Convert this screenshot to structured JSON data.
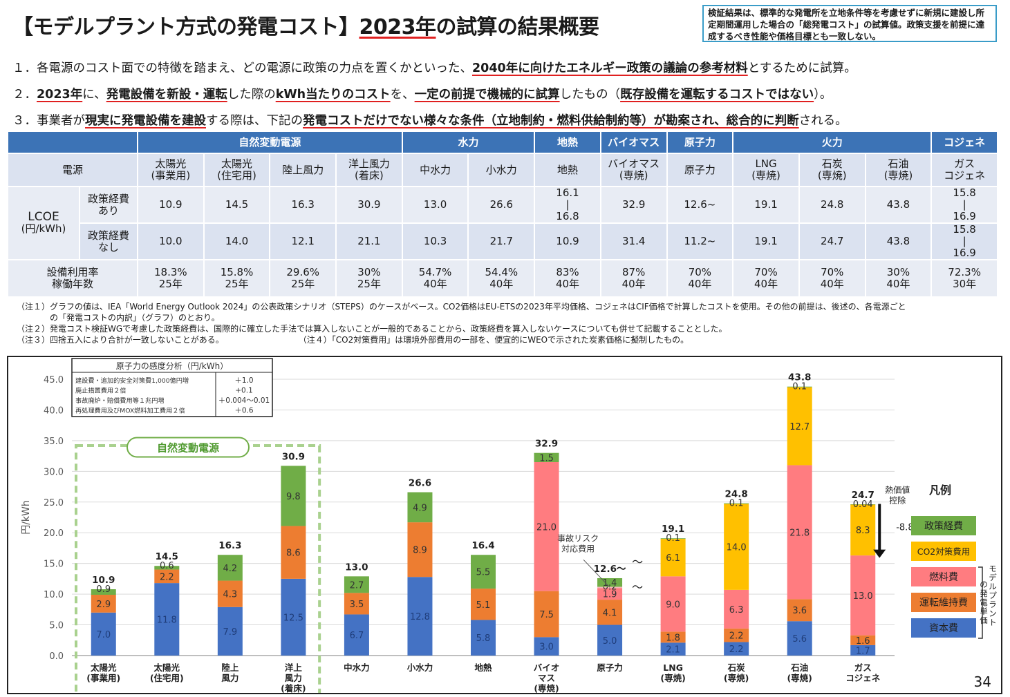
{
  "header": {
    "title_prefix": "【モデルプラント方式の発電コスト】",
    "title_year": "2023年",
    "title_suffix": "の試算の結果概要",
    "note": "検証結果は、標準的な発電所を立地条件等を考慮せずに新規に建設し所定期間運用した場合の「総発電コスト」の試算値。政策支援を前提に達成するべき性能や価格目標とも一致しない。"
  },
  "bullets": [
    {
      "a": "１．各電源のコスト面での特徴を踏まえ、どの電源に政策の力点を置くかといった、",
      "b": "2040年に向けたエネルギー政策の議論の参考材料",
      "c": "とするために試算。",
      "d": "",
      "e": "",
      "f": "",
      "g": "",
      "h": ""
    },
    {
      "a": "２．",
      "b": "2023年",
      "c": "に、",
      "d": "発電設備を新設・運転",
      "e": "した際の",
      "f": "kWh当たりのコスト",
      "g": "を、",
      "h": "一定の前提で機械的に試算",
      "i": "したもの（",
      "j": "既存設備を運転するコストではない",
      "k": "）。"
    },
    {
      "a": "３．事業者が",
      "b": "現実に発電設備を建設",
      "c": "する際は、下記の",
      "d": "発電コストだけでない様々な条件（立地制約・燃料供給制約等）が勘案され、総合的に判断",
      "e": "される。"
    }
  ],
  "table": {
    "categories": [
      {
        "label": "自然変動電源",
        "span": 4
      },
      {
        "label": "水力",
        "span": 2
      },
      {
        "label": "地熱",
        "span": 1
      },
      {
        "label": "バイオマス",
        "span": 1
      },
      {
        "label": "原子力",
        "span": 1
      },
      {
        "label": "火力",
        "span": 3
      },
      {
        "label": "コジェネ",
        "span": 1
      }
    ],
    "source_header": "電源",
    "sources": [
      "太陽光\n(事業用)",
      "太陽光\n(住宅用)",
      "陸上風力",
      "洋上風力\n(着床)",
      "中水力",
      "小水力",
      "地熱",
      "バイオマス\n(専焼)",
      "原子力",
      "LNG\n(専焼)",
      "石炭\n(専焼)",
      "石油\n(専焼)",
      "ガス\nコジェネ"
    ],
    "lcoe_label": "LCOE",
    "lcoe_unit": "(円/kWh)",
    "row_with_label": "政策経費\nあり",
    "row_without_label": "政策経費\nなし",
    "with_policy": [
      "10.9",
      "14.5",
      "16.3",
      "30.9",
      "13.0",
      "26.6",
      "16.1\n|\n16.8",
      "32.9",
      "12.6~",
      "19.1",
      "24.8",
      "43.8",
      "15.8\n|\n16.9"
    ],
    "without_policy": [
      "10.0",
      "14.0",
      "12.1",
      "21.1",
      "10.3",
      "21.7",
      "10.9",
      "31.4",
      "11.2~",
      "19.1",
      "24.7",
      "43.8",
      "15.8\n|\n16.9"
    ],
    "util_label": "設備利用率\n稼働年数",
    "util": [
      "18.3%\n25年",
      "15.8%\n25年",
      "29.6%\n25年",
      "30%\n25年",
      "54.7%\n40年",
      "54.4%\n40年",
      "83%\n40年",
      "87%\n40年",
      "70%\n40年",
      "70%\n40年",
      "70%\n40年",
      "30%\n40年",
      "72.3%\n30年"
    ]
  },
  "footnotes": [
    "（注１）グラフの値は、IEA「World Energy Outlook 2024」の公表政策シナリオ（STEPS）のケースがベース。CO2価格はEU-ETSの2023年平均価格、コジェネはCIF価格で計算したコストを使用。その他の前提は、後述の、各電源ごと",
    "　　　　の「発電コストの内訳」（グラフ）のとおり。",
    "（注２）発電コスト検証WGで考慮した政策経費は、国際的に確立した手法では算入しないことが一般的であることから、政策経費を算入しないケースについても併せて記載することとした。",
    "（注３）四捨五入により合計が一致しないことがある。　　　　　　　　　　（注４）「CO2対策費用」は環境外部費用の一部を、便宜的にWEOで示された炭素価格に擬制したもの。"
  ],
  "chart_data": {
    "type": "bar",
    "stacked": true,
    "ylabel": "円/kWh",
    "ylim": [
      0,
      45
    ],
    "yticks": [
      "0.0",
      "5.0",
      "10.0",
      "15.0",
      "20.0",
      "25.0",
      "30.0",
      "35.0",
      "40.0",
      "45.0"
    ],
    "categories": [
      "太陽光\n(事業用)",
      "太陽光\n(住宅用)",
      "陸上\n風力",
      "洋上\n風力\n(着床)",
      "中水力",
      "小水力",
      "地熱",
      "バイオ\nマス\n(専焼)",
      "原子力",
      "LNG\n(専焼)",
      "石炭\n(専焼)",
      "石油\n(専焼)",
      "ガス\nコジェネ"
    ],
    "totals": [
      "10.9",
      "14.5",
      "16.3",
      "30.9",
      "13.0",
      "26.6",
      "16.4",
      "32.9",
      "12.6〜",
      "19.1",
      "24.8",
      "43.8",
      "24.7"
    ],
    "series": [
      {
        "name": "資本費",
        "color": "#4472c4",
        "values": [
          7.0,
          11.8,
          7.9,
          12.5,
          6.7,
          12.8,
          5.8,
          3.0,
          5.0,
          2.1,
          2.2,
          5.6,
          1.7
        ]
      },
      {
        "name": "運転維持費",
        "color": "#ed7d31",
        "values": [
          2.9,
          2.2,
          4.3,
          8.6,
          3.5,
          8.9,
          5.1,
          7.5,
          4.1,
          1.8,
          2.2,
          3.6,
          1.6
        ]
      },
      {
        "name": "燃料費",
        "color": "#ff7c80",
        "values": [
          0,
          0,
          0,
          0,
          0,
          0,
          0,
          21.0,
          1.9,
          9.0,
          6.3,
          21.8,
          13.0
        ]
      },
      {
        "name": "CO2対策費用",
        "color": "#ffc000",
        "values": [
          0,
          0,
          0,
          0,
          0,
          0,
          0,
          0,
          0,
          6.1,
          14.0,
          12.7,
          8.3
        ]
      },
      {
        "name": "事故リスク対応費用",
        "color": "#f2b8b8",
        "values": [
          0,
          0,
          0,
          0,
          0,
          0,
          0,
          0,
          0.2,
          0,
          0,
          0,
          0
        ]
      },
      {
        "name": "政策経費",
        "color": "#70ad47",
        "values": [
          0.9,
          0.6,
          4.2,
          9.8,
          2.7,
          4.9,
          5.5,
          1.5,
          1.4,
          0.1,
          0.1,
          0.1,
          0.04
        ]
      }
    ],
    "segment_labels": [
      [
        "7.0",
        "2.9",
        "",
        "",
        "",
        "0.9"
      ],
      [
        "11.8",
        "2.2",
        "",
        "",
        "",
        "0.6"
      ],
      [
        "7.9",
        "4.3",
        "",
        "",
        "",
        "4.2"
      ],
      [
        "12.5",
        "8.6",
        "",
        "",
        "",
        "9.8"
      ],
      [
        "6.7",
        "3.5",
        "",
        "",
        "",
        "2.7"
      ],
      [
        "12.8",
        "8.9",
        "",
        "",
        "",
        "4.9"
      ],
      [
        "5.8",
        "5.1",
        "",
        "",
        "",
        "5.5"
      ],
      [
        "3.0",
        "7.5",
        "21.0",
        "",
        "",
        "1.5"
      ],
      [
        "5.0",
        "4.1",
        "1.9",
        "",
        "0.2",
        "1.4"
      ],
      [
        "2.1",
        "1.8",
        "9.0",
        "6.1",
        "",
        "0.1"
      ],
      [
        "2.2",
        "2.2",
        "6.3",
        "14.0",
        "",
        "0.1"
      ],
      [
        "5.6",
        "3.6",
        "21.8",
        "12.7",
        "",
        "0.1"
      ],
      [
        "1.7",
        "1.6",
        "13.0",
        "8.3",
        "",
        "0.04"
      ]
    ],
    "legend_title": "凡例",
    "legend_side_label": "モデルプラントの発電単価",
    "group_label": "自然変動電源",
    "annotation_accident": "事故リスク\n対応費用",
    "annotation_tilde": "〜",
    "annotation_heat": "熱価値\n控除",
    "annotation_heat_value": "-8.8",
    "nuclear_table": {
      "title": "原子力の感度分析（円/kWh）",
      "rows": [
        {
          "label": "建設費・追加的安全対策費1,000億円増",
          "value": "＋1.0"
        },
        {
          "label": "廃止措置費用２倍",
          "value": "+0.1"
        },
        {
          "label": "事故廃炉・賠償費用等１兆円増",
          "value": "＋0.004〜0.01"
        },
        {
          "label": "再処理費用及びMOX燃料加工費用２倍",
          "value": "＋0.6"
        }
      ]
    }
  },
  "page_number": "34"
}
